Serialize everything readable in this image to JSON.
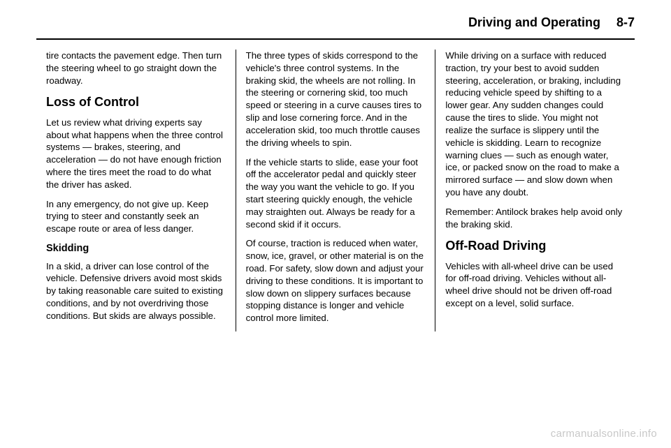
{
  "header": {
    "section_title": "Driving and Operating",
    "page_number": "8-7"
  },
  "col1": {
    "p1": "tire contacts the pavement edge. Then turn the steering wheel to go straight down the roadway.",
    "h1": "Loss of Control",
    "p2": "Let us review what driving experts say about what happens when the three control systems — brakes, steering, and acceleration — do not have enough friction where the tires meet the road to do what the driver has asked.",
    "p3": "In any emergency, do not give up. Keep trying to steer and constantly seek an escape route or area of less danger.",
    "h2": "Skidding",
    "p4": "In a skid, a driver can lose control of the vehicle. Defensive drivers avoid most skids by taking reasonable care suited to existing conditions, and by not overdriving those conditions. But skids are always possible."
  },
  "col2": {
    "p1": "The three types of skids correspond to the vehicle's three control systems. In the braking skid, the wheels are not rolling. In the steering or cornering skid, too much speed or steering in a curve causes tires to slip and lose cornering force. And in the acceleration skid, too much throttle causes the driving wheels to spin.",
    "p2": "If the vehicle starts to slide, ease your foot off the accelerator pedal and quickly steer the way you want the vehicle to go. If you start steering quickly enough, the vehicle may straighten out. Always be ready for a second skid if it occurs.",
    "p3": "Of course, traction is reduced when water, snow, ice, gravel, or other material is on the road. For safety, slow down and adjust your driving to these conditions. It is important to slow down on slippery surfaces because stopping distance is longer and vehicle control more limited."
  },
  "col3": {
    "p1": "While driving on a surface with reduced traction, try your best to avoid sudden steering, acceleration, or braking, including reducing vehicle speed by shifting to a lower gear. Any sudden changes could cause the tires to slide. You might not realize the surface is slippery until the vehicle is skidding. Learn to recognize warning clues — such as enough water, ice, or packed snow on the road to make a mirrored surface — and slow down when you have any doubt.",
    "p2": "Remember: Antilock brakes help avoid only the braking skid.",
    "h1": "Off-Road Driving",
    "p3": "Vehicles with all-wheel drive can be used for off-road driving. Vehicles without all-wheel drive should not be driven off-road except on a level, solid surface."
  },
  "watermark": "carmanualsonline.info"
}
